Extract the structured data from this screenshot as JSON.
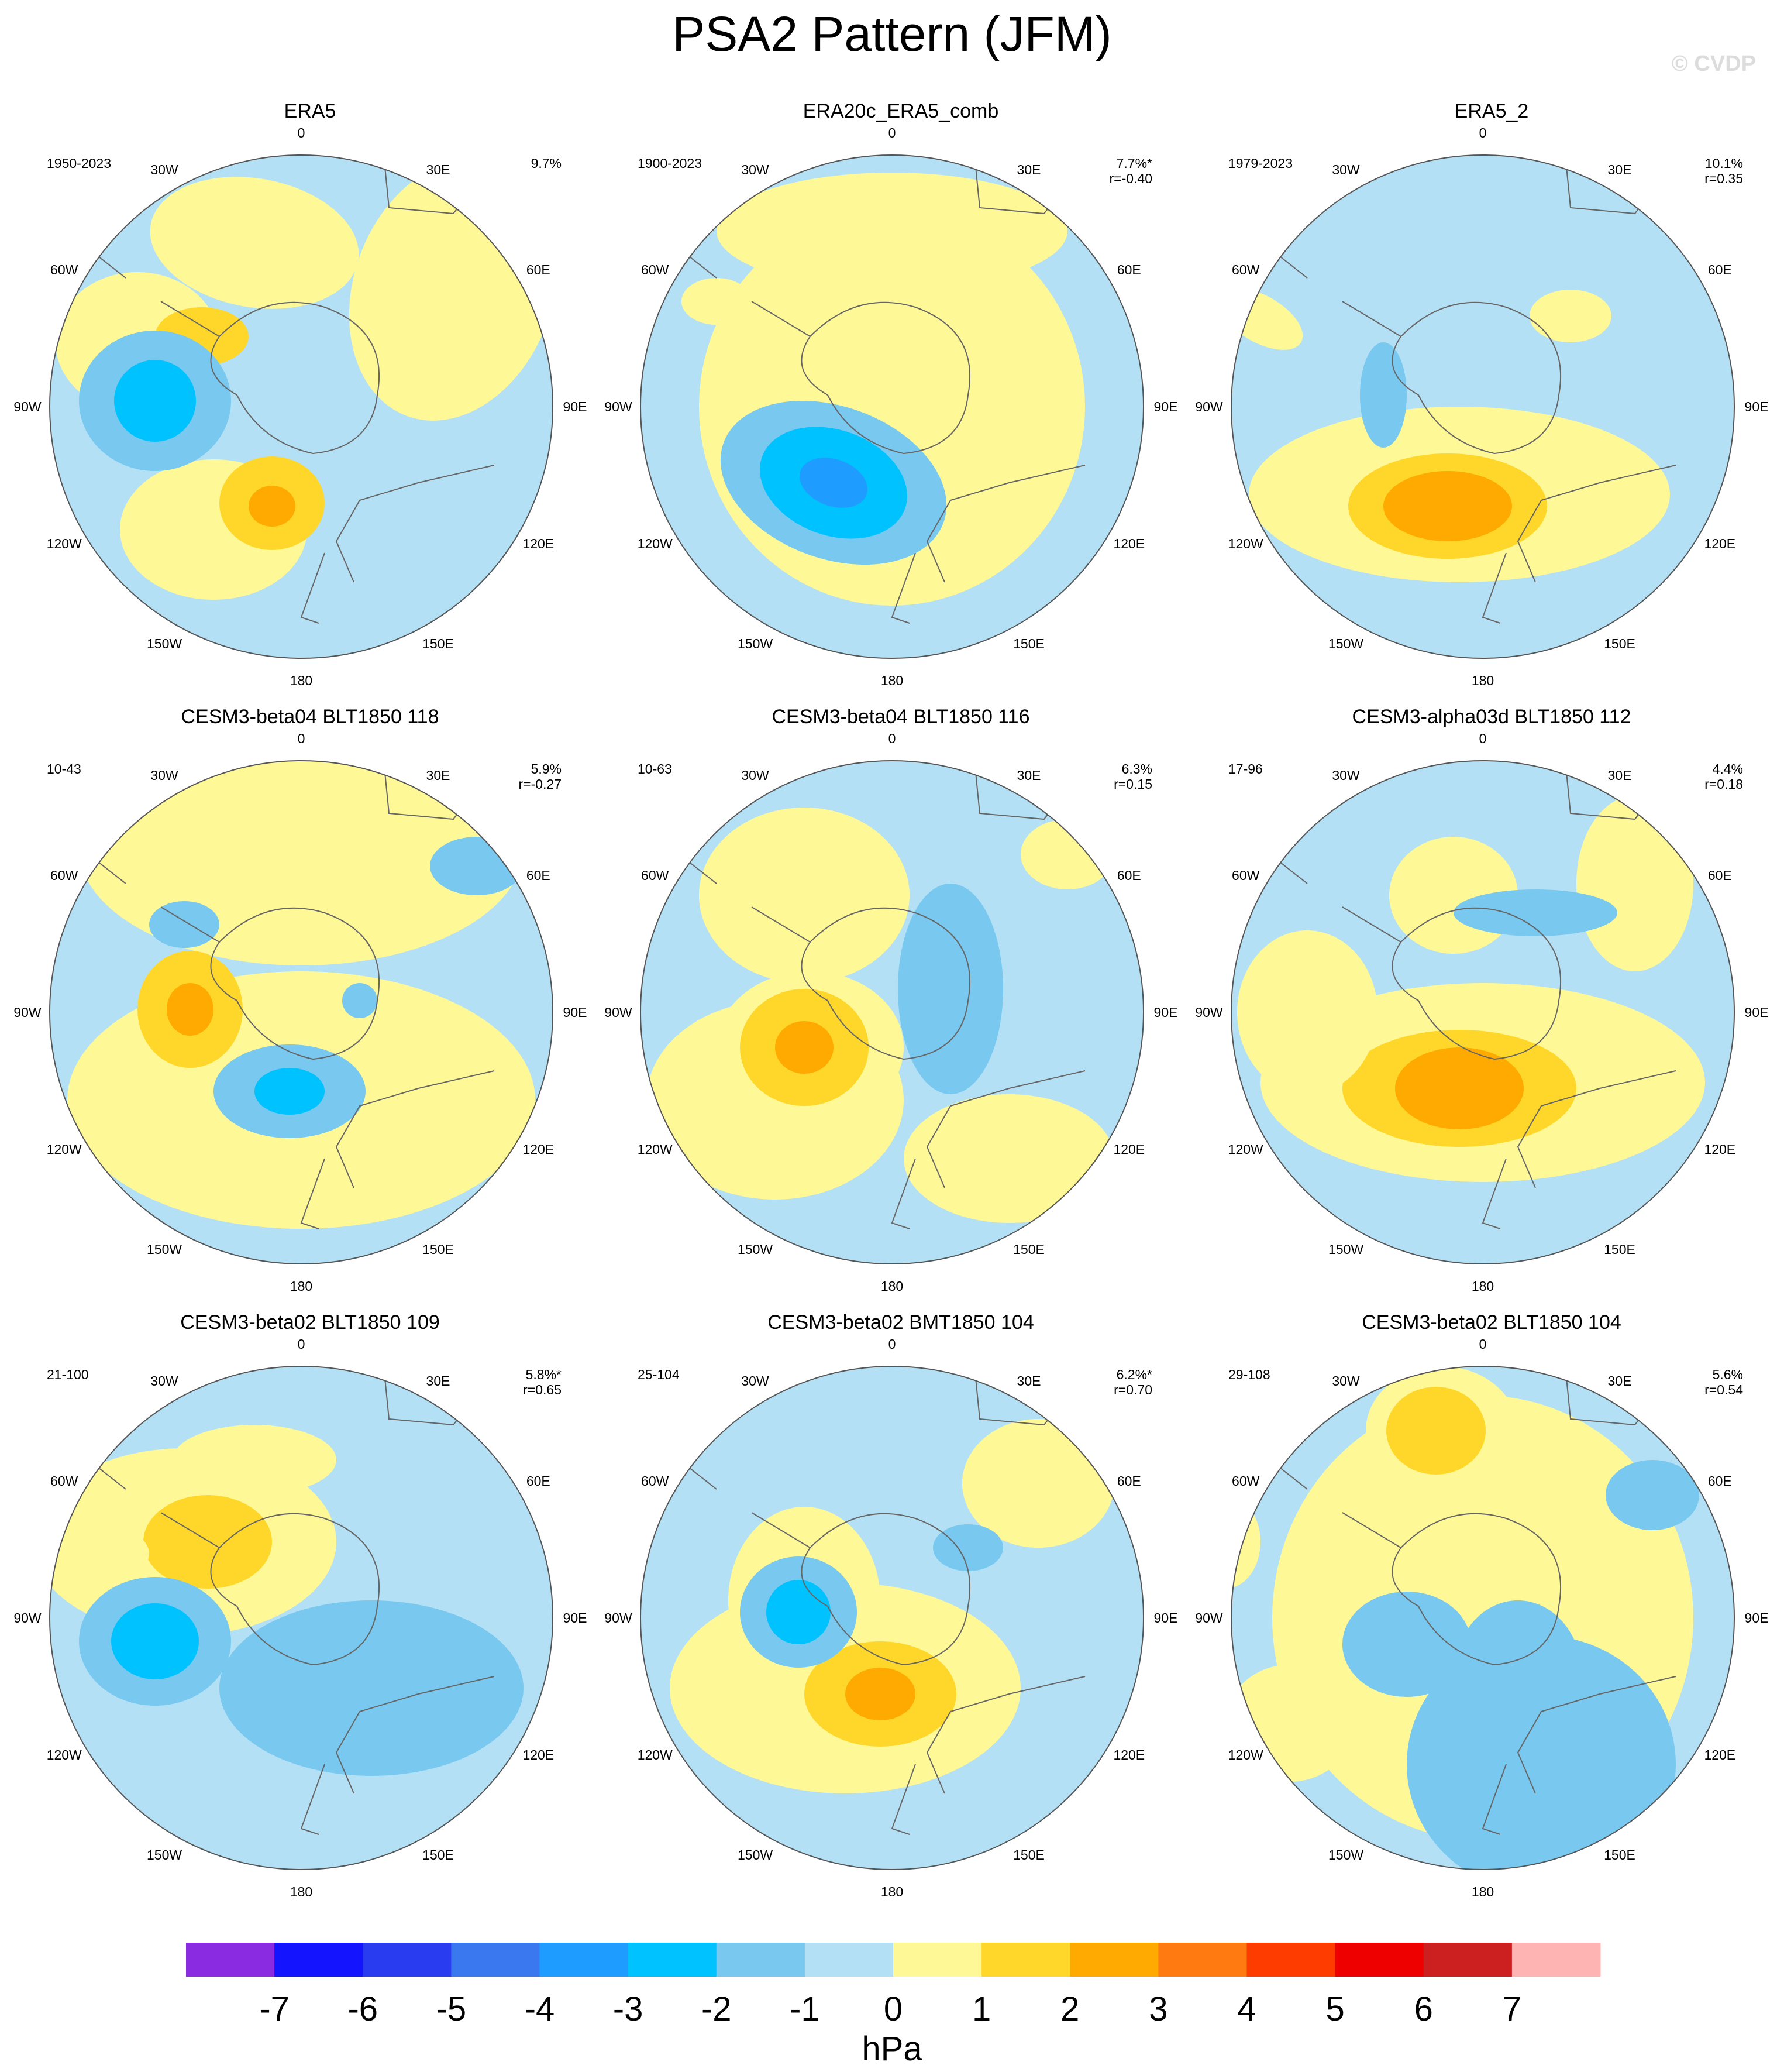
{
  "title": "PSA2 Pattern (JFM)",
  "watermark": "© CVDP",
  "lon_labels": [
    "0",
    "30E",
    "60E",
    "90E",
    "120E",
    "150E",
    "180",
    "150W",
    "120W",
    "90W",
    "60W",
    "30W"
  ],
  "panels": [
    {
      "title": "ERA5",
      "years": "1950-2023",
      "pct": "9.7%",
      "r": ""
    },
    {
      "title": "ERA20c_ERA5_comb",
      "years": "1900-2023",
      "pct": "7.7%*",
      "r": "r=-0.40"
    },
    {
      "title": "ERA5_2",
      "years": "1979-2023",
      "pct": "10.1%",
      "r": "r=0.35"
    },
    {
      "title": "CESM3-beta04 BLT1850 118",
      "years": "10-43",
      "pct": "5.9%",
      "r": "r=-0.27"
    },
    {
      "title": "CESM3-beta04 BLT1850 116",
      "years": "10-63",
      "pct": "6.3%",
      "r": "r=0.15"
    },
    {
      "title": "CESM3-alpha03d BLT1850 112",
      "years": "17-96",
      "pct": "4.4%",
      "r": "r=0.18"
    },
    {
      "title": "CESM3-beta02 BLT1850 109",
      "years": "21-100",
      "pct": "5.8%*",
      "r": "r=0.65"
    },
    {
      "title": "CESM3-beta02 BMT1850 104",
      "years": "25-104",
      "pct": "6.2%*",
      "r": "r=0.70"
    },
    {
      "title": "CESM3-beta02 BLT1850 104",
      "years": "29-108",
      "pct": "5.6%",
      "r": "r=0.54"
    }
  ],
  "colorbar": {
    "units": "hPa",
    "levels": [
      "-7",
      "-6",
      "-5",
      "-4",
      "-3",
      "-2",
      "-1",
      "0",
      "1",
      "2",
      "3",
      "4",
      "5",
      "6",
      "7"
    ],
    "colors": [
      "#8a2be2",
      "#1414ff",
      "#2a3cf0",
      "#3a78f0",
      "#1e9cff",
      "#00c2ff",
      "#78c8f0",
      "#b4e0f5",
      "#fff896",
      "#ffd72a",
      "#ffaa00",
      "#ff7a10",
      "#ff3c00",
      "#ee0000",
      "#cc2020",
      "#ffb4b4"
    ]
  }
}
